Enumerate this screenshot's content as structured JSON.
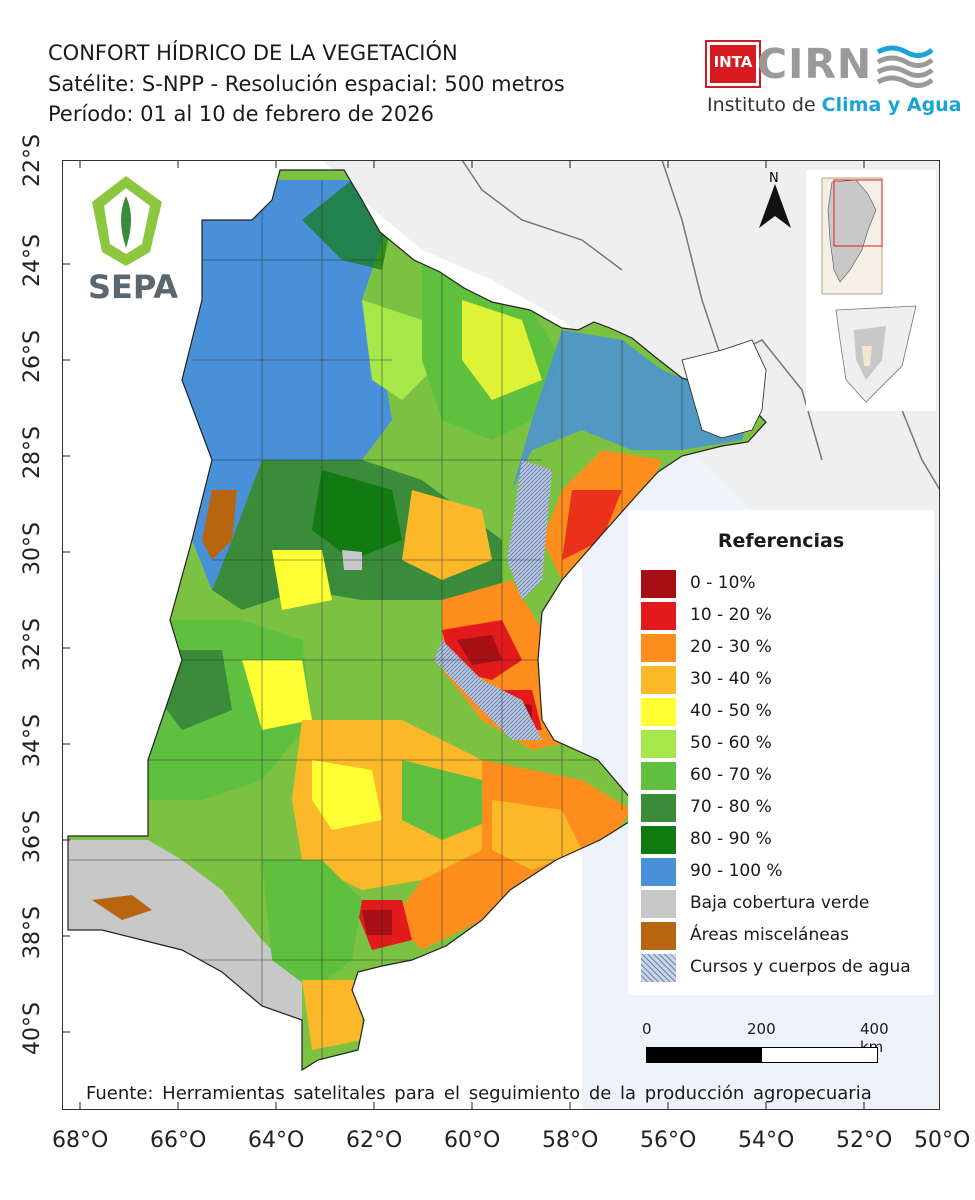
{
  "header": {
    "title": "CONFORT HÍDRICO DE LA VEGETACIÓN",
    "subtitle": "Satélite: S-NPP - Resolución espacial: 500 metros",
    "period": "Período: 01 al 10 de febrero de 2026"
  },
  "logos": {
    "inta": "INTA",
    "cirn": "CIRN",
    "institute_prefix": "Instituto de ",
    "institute_accent": "Clima y Agua",
    "sepa": "SEPA"
  },
  "map": {
    "lat_labels": [
      "22°S",
      "24°S",
      "26°S",
      "28°S",
      "30°S",
      "32°S",
      "34°S",
      "36°S",
      "38°S",
      "40°S"
    ],
    "lon_labels": [
      "68°O",
      "66°O",
      "64°O",
      "62°O",
      "60°O",
      "58°O",
      "56°O",
      "54°O",
      "52°O",
      "50°O"
    ],
    "north_label": "N"
  },
  "legend": {
    "title": "Referencias",
    "items": [
      {
        "label": "0 - 10%",
        "color": "#a50f15"
      },
      {
        "label": "10 - 20 %",
        "color": "#e31a1c"
      },
      {
        "label": "20 - 30 %",
        "color": "#fd8d1c"
      },
      {
        "label": "30 - 40 %",
        "color": "#fbb829"
      },
      {
        "label": "40 - 50 %",
        "color": "#ffff33"
      },
      {
        "label": "50 - 60 %",
        "color": "#a6e84a"
      },
      {
        "label": "60 - 70 %",
        "color": "#5fbf3f"
      },
      {
        "label": "70 - 80 %",
        "color": "#3a8c3a"
      },
      {
        "label": "80 - 90 %",
        "color": "#117a11"
      },
      {
        "label": "90 - 100 %",
        "color": "#4a90d9"
      },
      {
        "label": "Baja cobertura verde",
        "color": "#c8c8c8"
      },
      {
        "label": "Áreas misceláneas",
        "color": "#b8650f"
      },
      {
        "label": "Cursos y cuerpos de agua",
        "color": "#8da3c7"
      }
    ]
  },
  "scalebar": {
    "labels": [
      "0",
      "200",
      "400 km"
    ]
  },
  "source": "Fuente: Herramientas satelitales para el seguimiento de la producción agropecuaria"
}
